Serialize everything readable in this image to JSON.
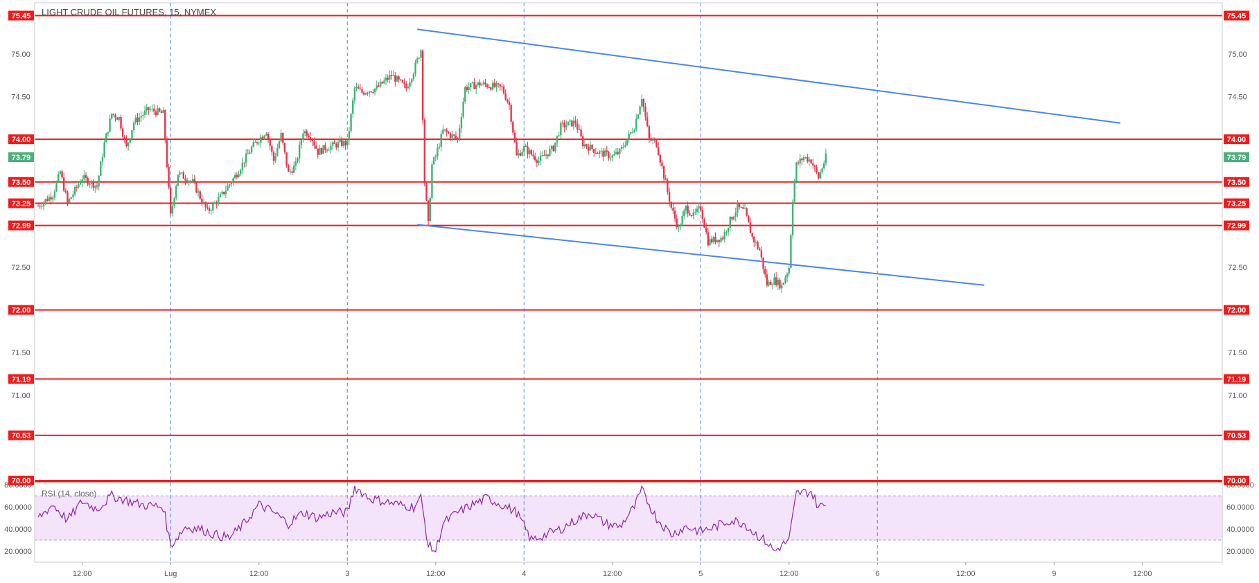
{
  "chart_data": {
    "type": "candlestick",
    "title": "LIGHT CRUDE OIL FUTURES, 15, NYMEX",
    "instrument": "LIGHT CRUDE OIL FUTURES",
    "interval": "15",
    "exchange": "NYMEX",
    "ylim": [
      70.0,
      75.6
    ],
    "price_ticks": [
      "75.00",
      "74.50",
      "74.00",
      "73.50",
      "72.50",
      "72.00",
      "71.50",
      "71.00"
    ],
    "x_ticks": [
      {
        "label": "12:00",
        "t": 6
      },
      {
        "label": "Lug",
        "t": 18
      },
      {
        "label": "12:00",
        "t": 30
      },
      {
        "label": "3",
        "t": 42
      },
      {
        "label": "12:00",
        "t": 54
      },
      {
        "label": "4",
        "t": 66
      },
      {
        "label": "12:00",
        "t": 78
      },
      {
        "label": "5",
        "t": 90
      },
      {
        "label": "12:00",
        "t": 102
      },
      {
        "label": "6",
        "t": 114
      },
      {
        "label": "12:00",
        "t": 126
      },
      {
        "label": "9",
        "t": 138
      },
      {
        "label": "12:00",
        "t": 150
      }
    ],
    "session_breaks_t": [
      18,
      42,
      66,
      90,
      114
    ],
    "current_price": {
      "label": "73.79",
      "value": 73.79,
      "color": "#4caf7d"
    },
    "levels": [
      {
        "label": "75.45",
        "value": 75.45
      },
      {
        "label": "74.00",
        "value": 74.0
      },
      {
        "label": "73.50",
        "value": 73.5
      },
      {
        "label": "73.25",
        "value": 73.25
      },
      {
        "label": "72.99",
        "value": 72.99
      },
      {
        "label": "72.00",
        "value": 72.0
      },
      {
        "label": "71.19",
        "value": 71.19
      },
      {
        "label": "70.53",
        "value": 70.53
      },
      {
        "label": "70.00",
        "value": 70.0
      }
    ],
    "trendlines": [
      {
        "name": "upper-channel",
        "t1": 51.5,
        "p1": 75.29,
        "t2": 147.0,
        "p2": 74.19
      },
      {
        "name": "lower-channel",
        "t1": 51.5,
        "p1": 73.0,
        "t2": 128.5,
        "p2": 72.29
      }
    ],
    "price_path": [
      [
        0,
        73.22
      ],
      [
        2,
        73.35
      ],
      [
        3,
        73.62
      ],
      [
        4,
        73.25
      ],
      [
        6,
        73.55
      ],
      [
        8,
        73.45
      ],
      [
        9,
        73.95
      ],
      [
        10,
        74.3
      ],
      [
        11,
        74.25
      ],
      [
        12,
        73.9
      ],
      [
        13,
        74.2
      ],
      [
        15,
        74.35
      ],
      [
        17,
        74.3
      ],
      [
        18,
        73.1
      ],
      [
        19,
        73.6
      ],
      [
        21,
        73.5
      ],
      [
        23,
        73.15
      ],
      [
        25,
        73.35
      ],
      [
        27,
        73.6
      ],
      [
        29,
        73.9
      ],
      [
        31,
        74.1
      ],
      [
        32,
        73.75
      ],
      [
        33,
        74.05
      ],
      [
        34,
        73.6
      ],
      [
        35,
        73.7
      ],
      [
        36,
        74.1
      ],
      [
        37,
        74.05
      ],
      [
        38,
        73.85
      ],
      [
        39,
        73.9
      ],
      [
        41,
        73.95
      ],
      [
        42,
        73.95
      ],
      [
        43,
        74.6
      ],
      [
        44,
        74.55
      ],
      [
        46,
        74.6
      ],
      [
        48,
        74.75
      ],
      [
        50,
        74.6
      ],
      [
        51,
        74.8
      ],
      [
        52,
        75.05
      ],
      [
        52.5,
        73.5
      ],
      [
        53,
        73.0
      ],
      [
        53.5,
        73.7
      ],
      [
        54,
        73.8
      ],
      [
        55,
        74.1
      ],
      [
        57,
        74.0
      ],
      [
        58,
        74.6
      ],
      [
        60,
        74.65
      ],
      [
        63,
        74.6
      ],
      [
        64,
        74.4
      ],
      [
        65,
        73.8
      ],
      [
        66,
        73.9
      ],
      [
        68,
        73.75
      ],
      [
        70,
        73.9
      ],
      [
        71,
        74.15
      ],
      [
        73,
        74.2
      ],
      [
        74,
        73.95
      ],
      [
        76,
        73.85
      ],
      [
        78,
        73.8
      ],
      [
        79,
        73.85
      ],
      [
        81,
        74.15
      ],
      [
        82,
        74.5
      ],
      [
        83,
        74.0
      ],
      [
        84,
        73.95
      ],
      [
        86,
        73.2
      ],
      [
        87,
        72.95
      ],
      [
        88,
        73.2
      ],
      [
        89,
        73.1
      ],
      [
        90,
        73.2
      ],
      [
        91,
        72.8
      ],
      [
        93,
        72.85
      ],
      [
        94,
        73.05
      ],
      [
        95,
        73.2
      ],
      [
        96,
        73.15
      ],
      [
        97,
        72.85
      ],
      [
        98,
        72.7
      ],
      [
        99,
        72.3
      ],
      [
        100,
        72.35
      ],
      [
        101,
        72.28
      ],
      [
        102,
        72.5
      ],
      [
        102.5,
        73.3
      ],
      [
        103,
        73.7
      ],
      [
        104,
        73.79
      ],
      [
        105,
        73.75
      ],
      [
        106,
        73.55
      ],
      [
        107,
        73.79
      ]
    ],
    "rsi": {
      "label": "RSI (14, close)",
      "ylim": [
        10,
        82
      ],
      "ticks": [
        "80.0000",
        "60.0000",
        "40.0000",
        "20.0000"
      ],
      "bands": [
        70,
        30
      ],
      "path": [
        [
          0,
          50
        ],
        [
          2,
          62
        ],
        [
          4,
          48
        ],
        [
          6,
          65
        ],
        [
          8,
          58
        ],
        [
          10,
          70
        ],
        [
          12,
          66
        ],
        [
          14,
          62
        ],
        [
          17,
          60
        ],
        [
          18,
          25
        ],
        [
          20,
          42
        ],
        [
          22,
          40
        ],
        [
          24,
          35
        ],
        [
          26,
          32
        ],
        [
          28,
          45
        ],
        [
          30,
          62
        ],
        [
          32,
          55
        ],
        [
          34,
          45
        ],
        [
          36,
          55
        ],
        [
          38,
          50
        ],
        [
          40,
          55
        ],
        [
          42,
          55
        ],
        [
          43,
          78
        ],
        [
          45,
          68
        ],
        [
          47,
          65
        ],
        [
          49,
          62
        ],
        [
          51,
          60
        ],
        [
          52,
          68
        ],
        [
          53,
          25
        ],
        [
          54,
          20
        ],
        [
          55,
          45
        ],
        [
          57,
          55
        ],
        [
          59,
          62
        ],
        [
          61,
          68
        ],
        [
          63,
          62
        ],
        [
          65,
          55
        ],
        [
          67,
          30
        ],
        [
          69,
          35
        ],
        [
          71,
          40
        ],
        [
          73,
          48
        ],
        [
          75,
          55
        ],
        [
          77,
          45
        ],
        [
          79,
          42
        ],
        [
          81,
          60
        ],
        [
          82,
          75
        ],
        [
          84,
          50
        ],
        [
          86,
          35
        ],
        [
          88,
          42
        ],
        [
          90,
          38
        ],
        [
          92,
          42
        ],
        [
          94,
          48
        ],
        [
          96,
          45
        ],
        [
          97,
          38
        ],
        [
          99,
          28
        ],
        [
          100,
          20
        ],
        [
          102,
          30
        ],
        [
          103,
          72
        ],
        [
          105,
          74
        ],
        [
          106,
          60
        ],
        [
          107,
          62
        ]
      ]
    }
  }
}
